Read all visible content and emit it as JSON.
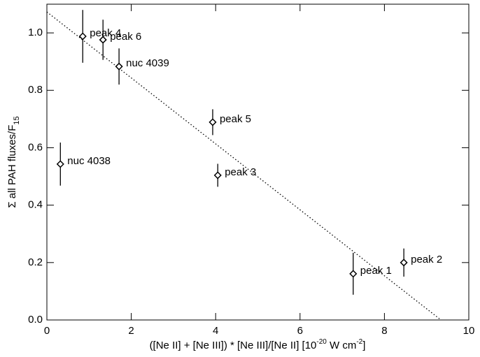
{
  "chart_data": {
    "type": "scatter",
    "xlabel_parts": [
      "([Ne II] + [Ne III]) * [Ne III]/[Ne II]  [10",
      "-20",
      " W cm",
      "-2",
      "]"
    ],
    "ylabel": "Σ all PAH fluxes/F",
    "ylabel_sub": "15",
    "xlim": [
      0,
      10
    ],
    "ylim": [
      0,
      1.1
    ],
    "xticks": [
      0,
      2,
      4,
      6,
      8,
      10
    ],
    "yticks": [
      {
        "value": 0,
        "label": "0.0"
      },
      {
        "value": 0.2,
        "label": "0.2"
      },
      {
        "value": 0.4,
        "label": "0.4"
      },
      {
        "value": 0.6,
        "label": "0.6"
      },
      {
        "value": 0.8,
        "label": "0.8"
      },
      {
        "value": 1.0,
        "label": "1.0"
      }
    ],
    "labels": [
      "peak 4",
      "peak 6",
      "nuc 4039",
      "peak 5",
      "nuc 4038",
      "peak 3",
      "peak 1",
      "peak 2"
    ],
    "x": [
      0.85,
      1.33,
      1.71,
      3.93,
      0.32,
      4.05,
      7.26,
      8.46
    ],
    "y": [
      0.988,
      0.976,
      0.883,
      0.689,
      0.543,
      0.504,
      0.161,
      0.2
    ],
    "yerr": [
      0.092,
      0.07,
      0.063,
      0.045,
      0.075,
      0.04,
      0.073,
      0.049
    ],
    "fit": {
      "x": [
        0,
        9.34
      ],
      "y": [
        1.073,
        0
      ]
    }
  }
}
